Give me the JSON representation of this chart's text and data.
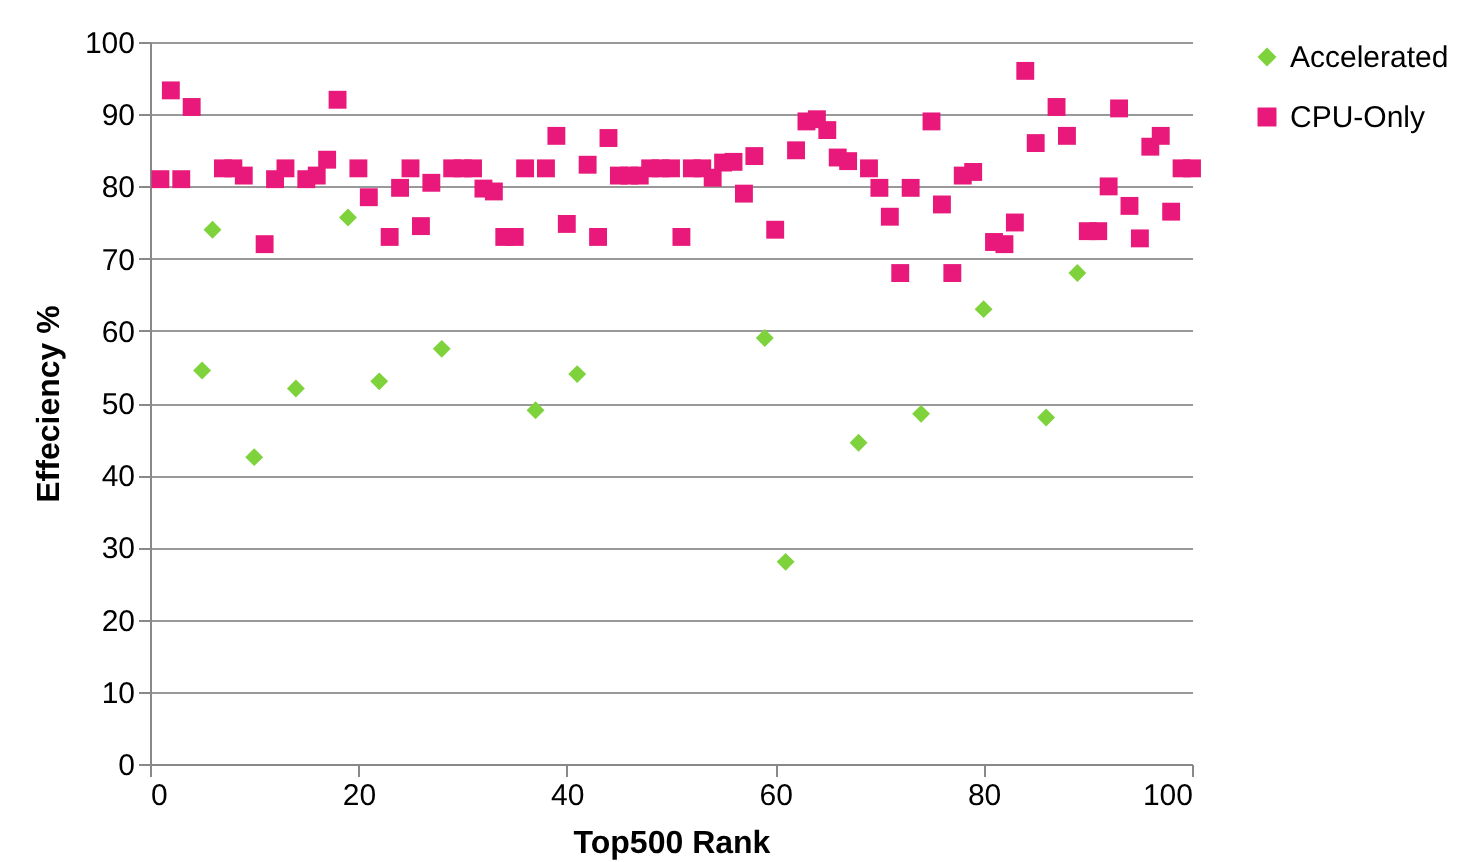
{
  "chart_data": {
    "type": "scatter",
    "xlabel": "Top500 Rank",
    "ylabel": "Effeciency %",
    "xlim": [
      0,
      100
    ],
    "xticks": [
      0,
      20,
      40,
      60,
      80,
      100
    ],
    "ylim": [
      0,
      100
    ],
    "yticks": [
      0,
      10,
      20,
      30,
      40,
      50,
      60,
      70,
      80,
      90,
      100
    ],
    "grid": "y",
    "legend": "right",
    "series": [
      {
        "name": "Accelerated",
        "color": "#7ed23c",
        "marker": "diamond",
        "x": [
          5,
          6,
          10,
          14,
          19,
          22,
          28,
          37,
          41,
          59,
          61,
          68,
          74,
          80,
          86,
          89
        ],
        "values": [
          54.5,
          74,
          42.5,
          52,
          75.7,
          53,
          57.5,
          49,
          54,
          59,
          28,
          44.5,
          48.5,
          63,
          48,
          68
        ]
      },
      {
        "name": "CPU-Only",
        "color": "#e8197a",
        "marker": "square",
        "x": [
          1,
          2,
          3,
          4,
          7,
          8,
          9,
          11,
          12,
          13,
          15,
          16,
          17,
          18,
          20,
          21,
          23,
          24,
          25,
          26,
          27,
          29,
          30,
          31,
          32,
          33,
          34,
          35,
          36,
          38,
          39,
          40,
          42,
          43,
          44,
          45,
          46,
          47,
          48,
          49,
          50,
          51,
          52,
          53,
          54,
          55,
          56,
          57,
          58,
          60,
          62,
          63,
          64,
          65,
          66,
          67,
          69,
          70,
          71,
          72,
          73,
          75,
          76,
          77,
          78,
          79,
          81,
          82,
          83,
          84,
          85,
          87,
          88,
          90,
          91,
          92,
          93,
          94,
          95,
          96,
          97,
          98,
          99,
          100
        ],
        "values": [
          81,
          93.3,
          81,
          91,
          82.5,
          82.5,
          81.5,
          72,
          81,
          82.5,
          81,
          81.5,
          83.7,
          92,
          82.5,
          78.5,
          73,
          79.8,
          82.5,
          74.5,
          80.5,
          82.5,
          82.5,
          82.5,
          79.7,
          79.3,
          73,
          73,
          82.5,
          82.5,
          87,
          74.8,
          83,
          73,
          86.7,
          81.5,
          81.5,
          81.5,
          82.5,
          82.5,
          82.5,
          73,
          82.5,
          82.5,
          81.2,
          83.3,
          83.4,
          79,
          84.2,
          74,
          85,
          89,
          89.3,
          87.8,
          84,
          83.5,
          82.5,
          79.8,
          75.8,
          68,
          79.8,
          89,
          77.5,
          68,
          81.5,
          82,
          72.3,
          72,
          75,
          96,
          86,
          91,
          87,
          73.8,
          73.8,
          80,
          90.8,
          77.3,
          72.8,
          85.5,
          87,
          76.5,
          82.5,
          82.5
        ]
      }
    ]
  }
}
